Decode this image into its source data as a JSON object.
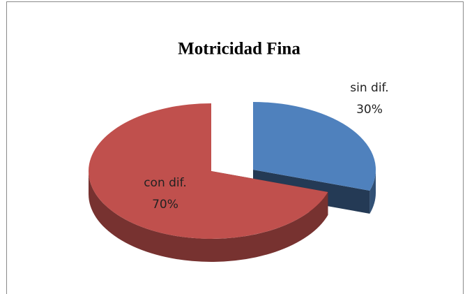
{
  "chart_data": {
    "type": "pie",
    "title": "Motricidad Fina",
    "categories": [
      "sin dif.",
      "con dif."
    ],
    "values": [
      30,
      70
    ],
    "value_labels": [
      "30%",
      "70%"
    ],
    "colors": [
      "#4f81bd",
      "#c0504d"
    ],
    "three_d": true,
    "exploded": [
      true,
      false
    ]
  }
}
